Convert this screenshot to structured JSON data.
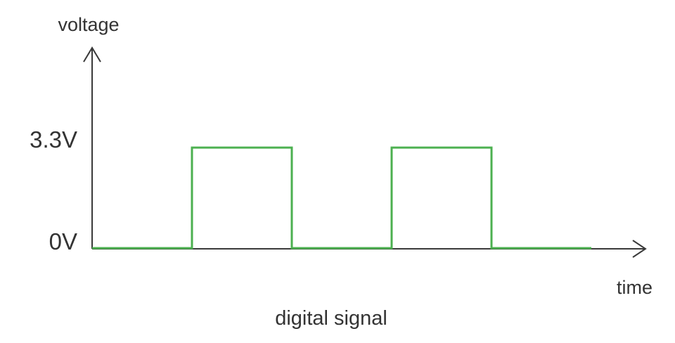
{
  "diagram": {
    "y_axis_label": "voltage",
    "x_axis_label": "time",
    "caption": "digital signal",
    "levels": [
      {
        "label": "3.3V",
        "value": 3.3
      },
      {
        "label": "0V",
        "value": 0
      }
    ],
    "signal": {
      "color": "#4cb050",
      "high_intervals": [
        [
          1,
          2
        ],
        [
          3,
          4
        ]
      ],
      "total_periods": 5
    }
  }
}
